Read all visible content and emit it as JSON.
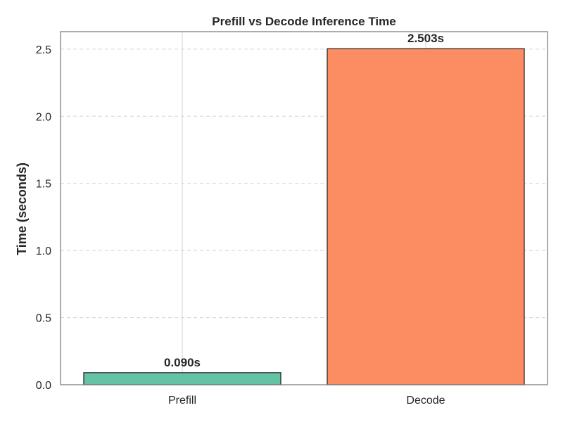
{
  "chart_data": {
    "type": "bar",
    "title": "Prefill vs Decode Inference Time",
    "xlabel": "",
    "ylabel": "Time (seconds)",
    "categories": [
      "Prefill",
      "Decode"
    ],
    "values": [
      0.09,
      2.503
    ],
    "data_labels": [
      "0.090s",
      "2.503s"
    ],
    "colors": [
      "#66c2a5",
      "#fc8d62"
    ],
    "ylim": [
      0,
      2.63
    ],
    "yticks": [
      0.0,
      0.5,
      1.0,
      1.5,
      2.0,
      2.5
    ],
    "ytick_labels": [
      "0.0",
      "0.5",
      "1.0",
      "1.5",
      "2.0",
      "2.5"
    ],
    "grid": true,
    "legend": "none"
  }
}
